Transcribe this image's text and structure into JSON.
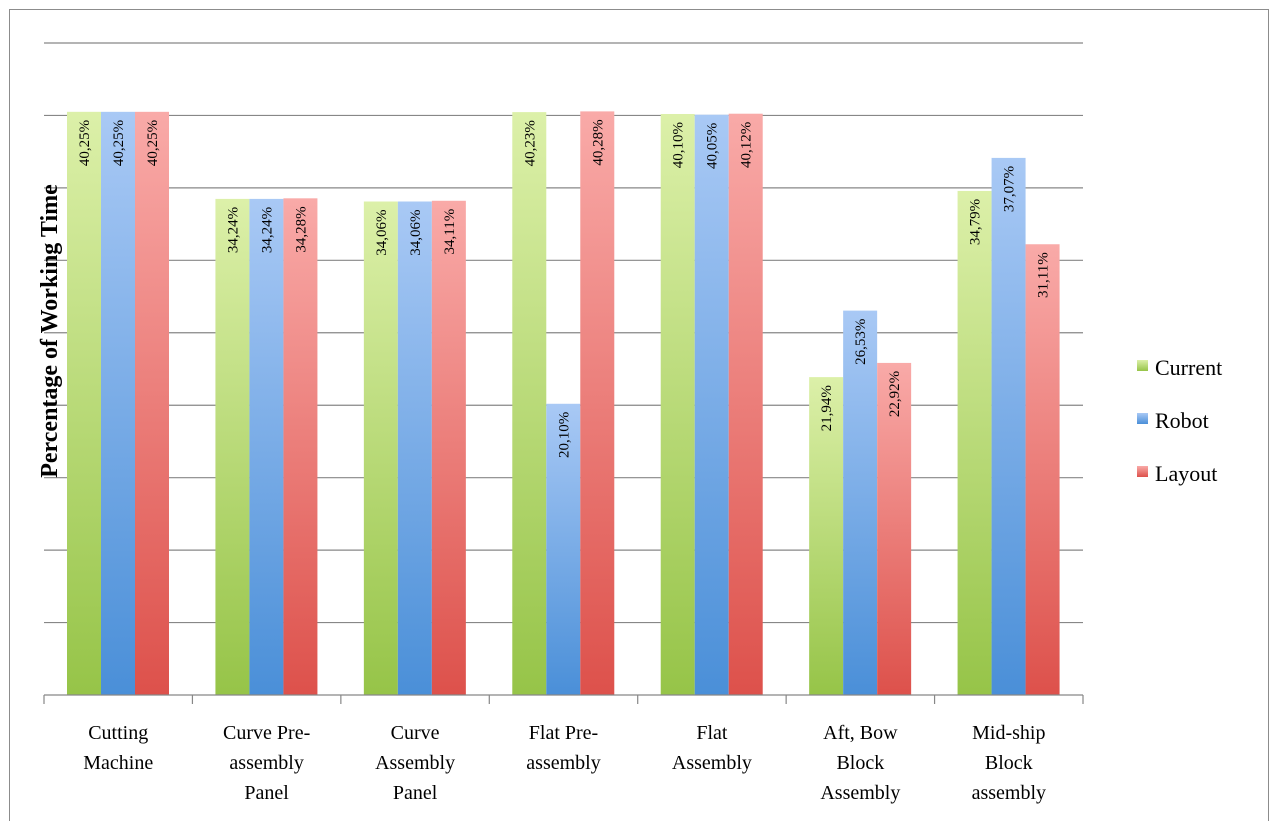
{
  "chart_data": {
    "type": "bar",
    "ylabel": "Percentage of Working Time",
    "xlabel": "",
    "ylim": [
      0,
      45
    ],
    "grid": true,
    "legend_position": "right",
    "categories": [
      [
        "Cutting",
        "Machine"
      ],
      [
        "Curve Pre-",
        "assembly",
        "Panel"
      ],
      [
        "Curve",
        "Assembly",
        "Panel"
      ],
      [
        "Flat Pre-",
        "assembly"
      ],
      [
        "Flat",
        "Assembly"
      ],
      [
        "Aft, Bow",
        "Block",
        "Assembly"
      ],
      [
        "Mid-ship",
        "Block",
        "assembly"
      ]
    ],
    "series": [
      {
        "name": "Current",
        "color": "#9bbb59",
        "values": [
          40.25,
          34.24,
          34.06,
          40.23,
          40.1,
          21.94,
          34.79
        ],
        "labels": [
          "40,25%",
          "34,24%",
          "34,06%",
          "40,23%",
          "40,10%",
          "21,94%",
          "34,79%"
        ]
      },
      {
        "name": "Robot",
        "color": "#4f81bd",
        "values": [
          40.25,
          34.24,
          34.06,
          20.1,
          40.05,
          26.53,
          37.07
        ],
        "labels": [
          "40,25%",
          "34,24%",
          "34,06%",
          "20,10%",
          "40,05%",
          "26,53%",
          "37,07%"
        ]
      },
      {
        "name": "Layout",
        "color": "#c0504d",
        "values": [
          40.25,
          34.28,
          34.11,
          40.28,
          40.12,
          22.92,
          31.11
        ],
        "labels": [
          "40,25%",
          "34,28%",
          "34,11%",
          "40,28%",
          "40,12%",
          "22,92%",
          "31,11%"
        ]
      }
    ]
  }
}
